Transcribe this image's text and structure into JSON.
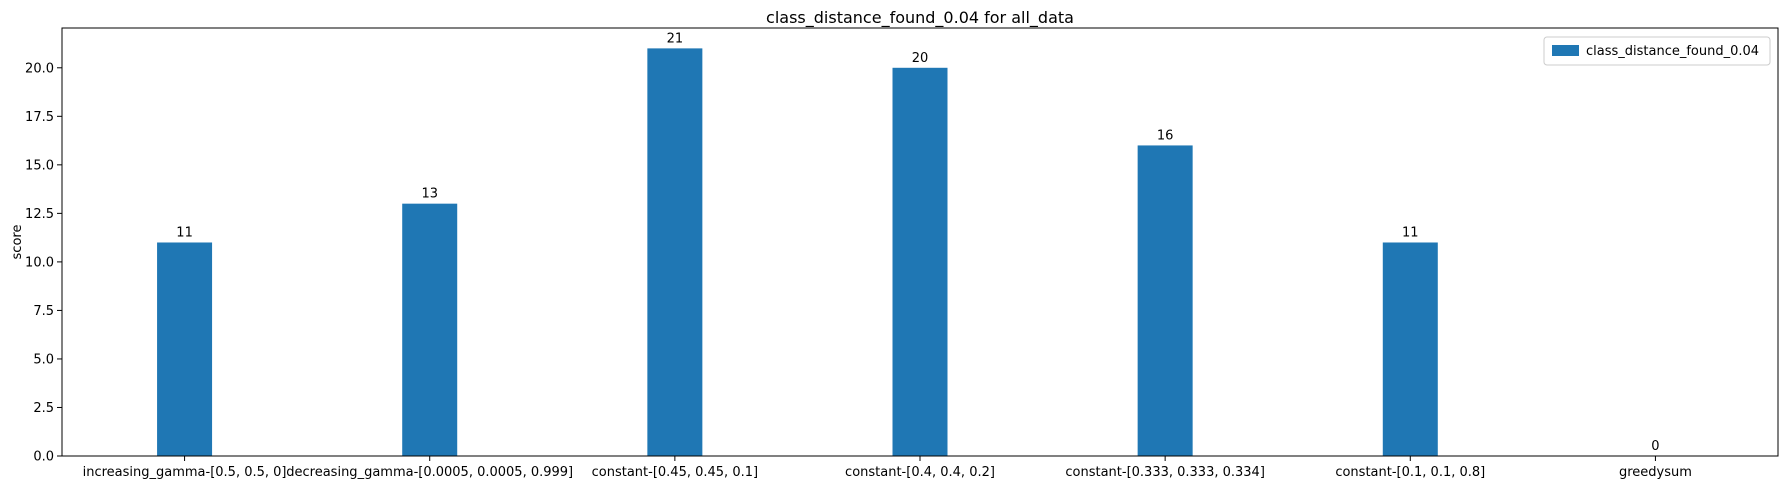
{
  "chart_data": {
    "type": "bar",
    "title": "class_distance_found_0.04 for all_data",
    "xlabel": "",
    "ylabel": "score",
    "categories": [
      "increasing_gamma-[0.5, 0.5, 0]",
      "decreasing_gamma-[0.0005, 0.0005, 0.999]",
      "constant-[0.45, 0.45, 0.1]",
      "constant-[0.4, 0.4, 0.2]",
      "constant-[0.333, 0.333, 0.334]",
      "constant-[0.1, 0.1, 0.8]",
      "greedysum"
    ],
    "series": [
      {
        "name": "class_distance_found_0.04",
        "values": [
          11,
          13,
          21,
          20,
          16,
          11,
          0
        ],
        "color": "#1f77b4"
      }
    ],
    "ylim": [
      0,
      22.05
    ],
    "yticks": [
      "0.0",
      "2.5",
      "5.0",
      "7.5",
      "10.0",
      "12.5",
      "15.0",
      "17.5",
      "20.0"
    ],
    "legend_position": "top-right",
    "grid": false
  }
}
